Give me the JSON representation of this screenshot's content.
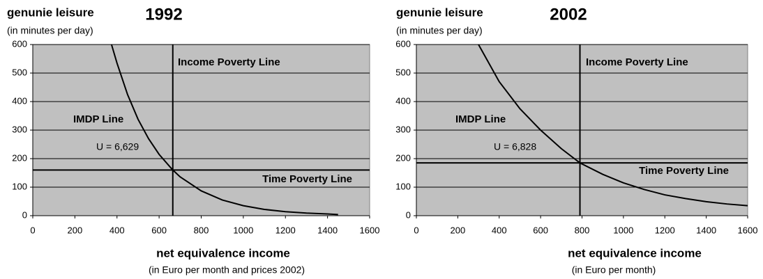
{
  "chart_data": [
    {
      "type": "line",
      "title": "1992",
      "y_label": "genunie leisure",
      "y_sublabel": "(in minutes per day)",
      "x_label": "net equivalence income",
      "x_sublabel": "(in Euro per month and prices 2002)",
      "x": [
        374,
        400,
        450,
        500,
        550,
        600,
        665,
        700,
        800,
        900,
        1000,
        1100,
        1200,
        1300,
        1400,
        1450
      ],
      "series": [
        {
          "name": "IMDP Line",
          "color": "#000000",
          "values": [
            600,
            535,
            425,
            338,
            270,
            215,
            160,
            136,
            87,
            55,
            35,
            22,
            14,
            9,
            6,
            4
          ]
        }
      ],
      "curve_label": "U = 6,629",
      "x_line": {
        "value": 665,
        "label": "Income Poverty Line"
      },
      "y_line": {
        "value": 160,
        "label": "Time Poverty Line"
      },
      "xlim": [
        0,
        1600
      ],
      "xticks": [
        0,
        200,
        400,
        600,
        800,
        1000,
        1200,
        1400,
        1600
      ],
      "ylim": [
        0,
        600
      ],
      "yticks": [
        0,
        100,
        200,
        300,
        400,
        500,
        600
      ],
      "grid": true,
      "background": "#c0c0c0"
    },
    {
      "type": "line",
      "title": "2002",
      "y_label": "genunie leisure",
      "y_sublabel": "(in minutes per day)",
      "x_label": "net equivalence income",
      "x_sublabel": "(in Euro per month)",
      "x": [
        300,
        400,
        500,
        600,
        700,
        790,
        900,
        1000,
        1100,
        1200,
        1300,
        1400,
        1500,
        1600
      ],
      "series": [
        {
          "name": "IMDP Line",
          "color": "#000000",
          "values": [
            600,
            470,
            375,
            300,
            235,
            185,
            145,
            115,
            92,
            73,
            60,
            49,
            41,
            35
          ]
        }
      ],
      "curve_label": "U = 6,828",
      "x_line": {
        "value": 790,
        "label": "Income Poverty Line"
      },
      "y_line": {
        "value": 185,
        "label": "Time Poverty Line"
      },
      "xlim": [
        0,
        1600
      ],
      "xticks": [
        0,
        200,
        400,
        600,
        800,
        1000,
        1200,
        1400,
        1600
      ],
      "ylim": [
        0,
        600
      ],
      "yticks": [
        0,
        100,
        200,
        300,
        400,
        500,
        600
      ],
      "grid": true,
      "background": "#c0c0c0"
    }
  ]
}
